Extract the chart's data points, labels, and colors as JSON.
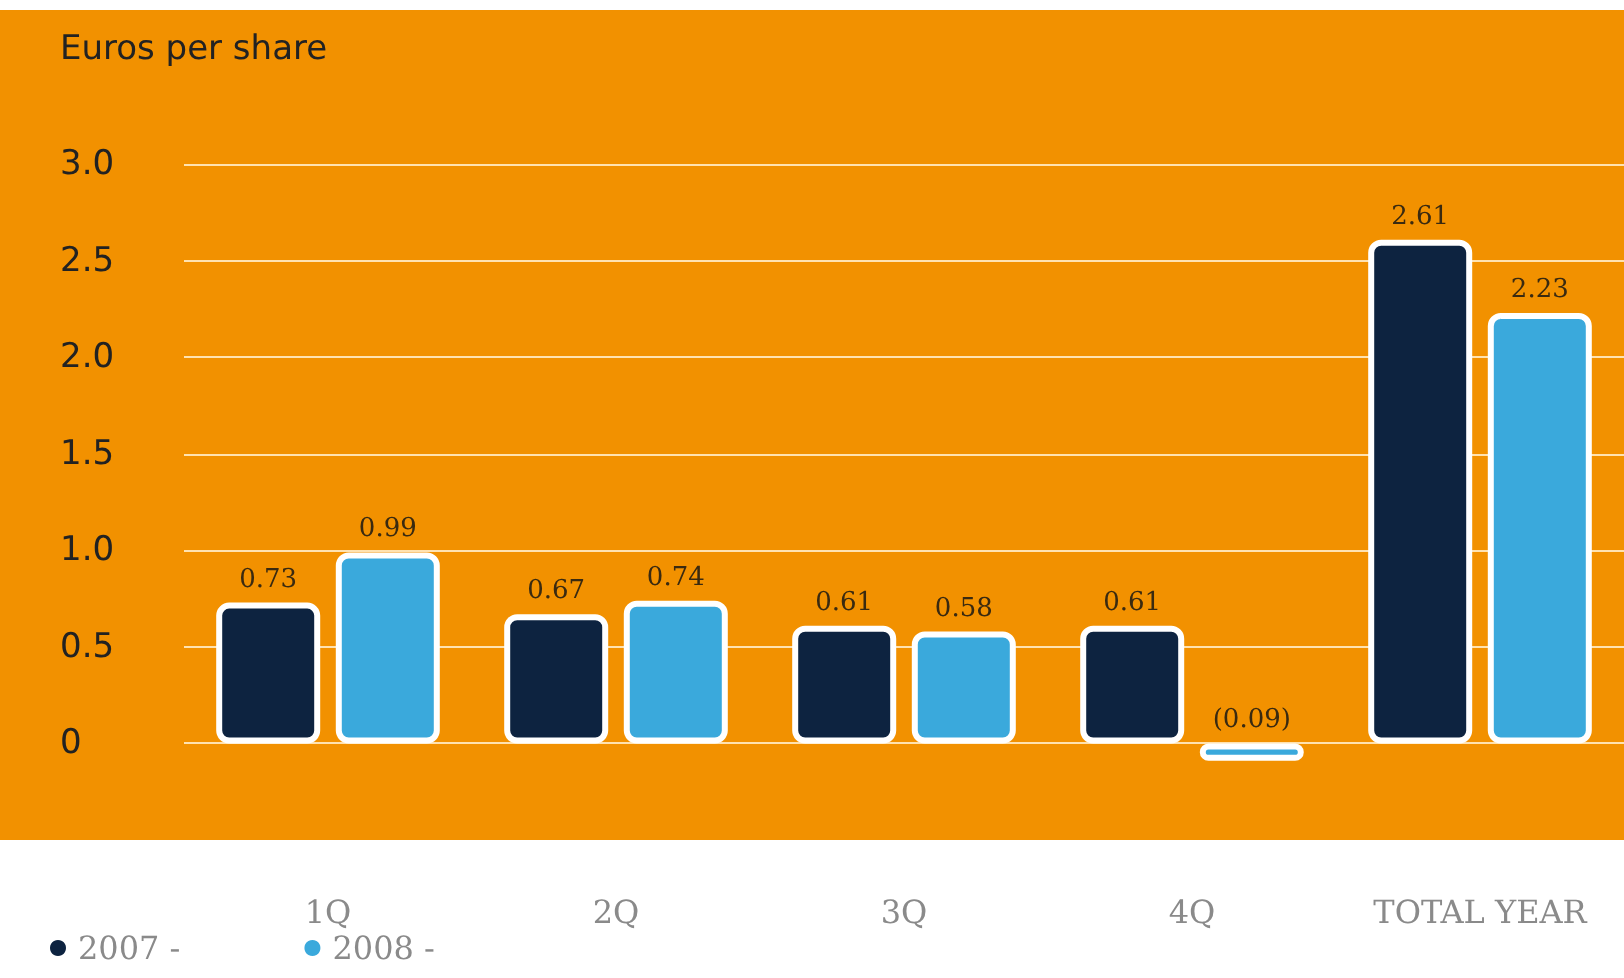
{
  "chart_data": {
    "type": "bar",
    "ylabel": "Euros per share",
    "categories": [
      "1Q",
      "2Q",
      "3Q",
      "4Q",
      "TOTAL YEAR"
    ],
    "series": [
      {
        "name": "2007 -",
        "color": "#0d2340",
        "values": [
          0.73,
          0.67,
          0.61,
          0.61,
          2.61
        ],
        "value_labels": [
          "0.73",
          "0.67",
          "0.61",
          "0.61",
          "2.61"
        ]
      },
      {
        "name": "2008 -",
        "color": "#3aa9dc",
        "values": [
          0.99,
          0.74,
          0.58,
          -0.09,
          2.23
        ],
        "value_labels": [
          "0.99",
          "0.74",
          "0.58",
          "(0.09)",
          "2.23"
        ]
      }
    ],
    "ylim": [
      -0.5,
      3.8
    ],
    "yticks": [
      {
        "value": 0,
        "label": "0"
      },
      {
        "value": 0.5,
        "label": "0.5"
      },
      {
        "value": 1,
        "label": "1.0"
      },
      {
        "value": 1.5,
        "label": "1.5"
      },
      {
        "value": 2,
        "label": "2.0"
      },
      {
        "value": 2.5,
        "label": "2.5"
      },
      {
        "value": 3,
        "label": "3.0"
      }
    ],
    "grid": "y",
    "legend": "bottom left"
  }
}
